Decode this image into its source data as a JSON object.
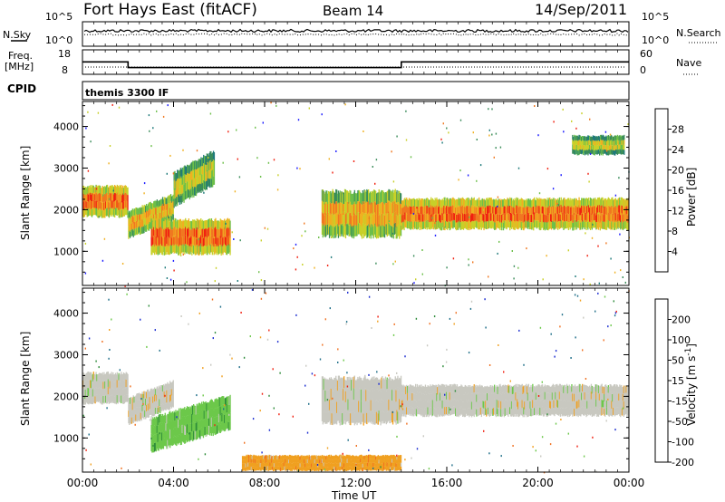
{
  "header": {
    "station": "Fort Hays East (fitACF)",
    "beam": "Beam 14",
    "date": "14/Sep/2011"
  },
  "strip_panels": {
    "nsky": {
      "left_label": "N.Sky",
      "right_label": "N.Search",
      "tick_top": "10^5",
      "tick_bottom": "10^0"
    },
    "freq": {
      "left_label_1": "Freq.",
      "left_label_2": "[MHz]",
      "tick_top": "18",
      "tick_bottom": "8",
      "right_label": "Nave",
      "right_tick_top": "60",
      "right_tick_bottom": "0",
      "freq_series": [
        {
          "t": 0,
          "mhz": 14.5
        },
        {
          "t": 2.0,
          "mhz": 14.5
        },
        {
          "t": 2.0,
          "mhz": 11.0
        },
        {
          "t": 14.0,
          "mhz": 11.0
        },
        {
          "t": 14.0,
          "mhz": 14.5
        },
        {
          "t": 24.0,
          "mhz": 14.5
        }
      ]
    },
    "cpid": {
      "label": "CPID",
      "value": "themis 3300 IF"
    }
  },
  "colors": {
    "power_scale": [
      "#1a1aff",
      "#1f7a7a",
      "#3a8c5a",
      "#6cbf4a",
      "#c8d028",
      "#f0b020",
      "#f07820",
      "#f02010"
    ],
    "velocity_scale": [
      "#1a2bd0",
      "#1e6e88",
      "#2e8c3a",
      "#6cc84a",
      "#c8c8c0",
      "#f0a020",
      "#f07020",
      "#f02010"
    ],
    "ground_scatter": "#c8c8c0"
  },
  "chart_data": [
    {
      "type": "heatmap",
      "panel": "power",
      "ylabel": "Slant Range [km]",
      "yticks": [
        "1000",
        "2000",
        "3000",
        "4000"
      ],
      "ylim": [
        180,
        4600
      ],
      "xlim": [
        0,
        24
      ],
      "colorbar": {
        "label": "Power [dB]",
        "ticks": [
          "4",
          "8",
          "12",
          "16",
          "20",
          "24",
          "28"
        ],
        "range": [
          0,
          30
        ]
      },
      "echo_regions": [
        {
          "t_start": 0.0,
          "t_end": 2.0,
          "r_low": 1800,
          "r_high": 2600,
          "power": 22
        },
        {
          "t_start": 2.0,
          "t_end": 4.0,
          "r_low": 1500,
          "r_high": 2200,
          "power": 18
        },
        {
          "t_start": 4.0,
          "t_end": 5.8,
          "r_low": 2300,
          "r_high": 3200,
          "power": 14
        },
        {
          "t_start": 3.0,
          "t_end": 6.5,
          "r_low": 900,
          "r_high": 1800,
          "power": 20
        },
        {
          "t_start": 10.5,
          "t_end": 14.0,
          "r_low": 1300,
          "r_high": 2500,
          "power": 18
        },
        {
          "t_start": 14.0,
          "t_end": 24.0,
          "r_low": 1500,
          "r_high": 2300,
          "power": 22
        },
        {
          "t_start": 21.5,
          "t_end": 23.8,
          "r_low": 3300,
          "r_high": 3800,
          "power": 12
        }
      ]
    },
    {
      "type": "heatmap",
      "panel": "velocity",
      "ylabel": "Slant Range [km]",
      "xlabel": "Time UT",
      "yticks": [
        "1000",
        "2000",
        "3000",
        "4000"
      ],
      "ylim": [
        180,
        4600
      ],
      "xlim": [
        0,
        24
      ],
      "xticks": [
        "00:00",
        "04:00",
        "08:00",
        "12:00",
        "16:00",
        "20:00",
        "00:00"
      ],
      "colorbar": {
        "label": "Velocity [m s",
        "label_superscript": "-1",
        "label_close": "]",
        "ticks": [
          "200",
          "100",
          "50",
          "15",
          "-15",
          "-50",
          "-100",
          "-200"
        ],
        "range": [
          -250,
          250
        ]
      },
      "echo_regions": [
        {
          "t_start": 0.0,
          "t_end": 2.0,
          "r_low": 1800,
          "r_high": 2600,
          "velocity": 0
        },
        {
          "t_start": 2.0,
          "t_end": 4.0,
          "r_low": 1500,
          "r_high": 2200,
          "velocity": 0
        },
        {
          "t_start": 3.0,
          "t_end": 6.5,
          "r_low": 900,
          "r_high": 1800,
          "velocity": 40
        },
        {
          "t_start": 10.5,
          "t_end": 14.0,
          "r_low": 1300,
          "r_high": 2500,
          "velocity": 0
        },
        {
          "t_start": 14.0,
          "t_end": 24.0,
          "r_low": 1500,
          "r_high": 2300,
          "velocity": 0
        },
        {
          "t_start": 7.0,
          "t_end": 14.0,
          "r_low": 200,
          "r_high": 600,
          "velocity": -40
        }
      ]
    }
  ]
}
